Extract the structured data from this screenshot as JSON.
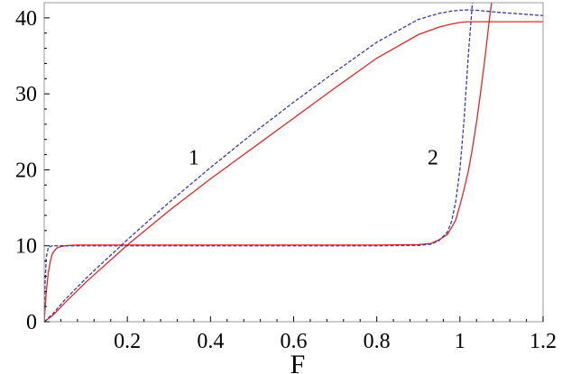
{
  "chart_data": {
    "type": "line",
    "title": "",
    "xlabel": "F",
    "ylabel": "",
    "xlim": [
      0,
      1.2
    ],
    "ylim": [
      0,
      42
    ],
    "x_tick_labels": [
      "0.2",
      "0.4",
      "0.6",
      "0.8",
      "1",
      "1.2"
    ],
    "x_ticks": [
      0.2,
      0.4,
      0.6,
      0.8,
      1.0,
      1.2
    ],
    "y_tick_labels": [
      "0",
      "10",
      "20",
      "30",
      "40"
    ],
    "y_ticks": [
      0,
      10,
      20,
      30,
      40
    ],
    "grid": false,
    "legend": "none",
    "annotations": [
      {
        "text": "1",
        "x": 0.36,
        "y": 20.7
      },
      {
        "text": "2",
        "x": 0.935,
        "y": 20.7
      }
    ],
    "series": [
      {
        "color": "#e8242a",
        "style": "solid",
        "x": [
          0,
          0.005,
          0.01,
          0.015,
          0.02,
          0.03,
          0.04,
          0.05,
          0.06,
          0.08,
          0.1,
          0.2,
          0.4,
          0.6,
          0.8,
          0.9,
          0.93,
          0.95,
          0.97,
          0.98,
          0.99,
          1.0,
          1.01,
          1.02,
          1.03,
          1.04,
          1.05,
          1.06,
          1.07,
          1.076
        ],
        "y": [
          0,
          4,
          6.5,
          8,
          9,
          9.7,
          9.9,
          10.0,
          10.05,
          10.1,
          10.1,
          10.1,
          10.1,
          10.1,
          10.1,
          10.15,
          10.3,
          10.8,
          11.5,
          12.4,
          13.4,
          15.3,
          17.4,
          19.8,
          22.8,
          26.3,
          30.3,
          34.6,
          39.4,
          42
        ]
      },
      {
        "color": "#e8242a",
        "style": "solid",
        "x": [
          0,
          0.02,
          0.05,
          0.1,
          0.2,
          0.3,
          0.4,
          0.5,
          0.6,
          0.7,
          0.8,
          0.9,
          0.95,
          0.98,
          1.0,
          1.02,
          1.05,
          1.1,
          1.2
        ],
        "y": [
          0,
          0.8,
          2.5,
          5.2,
          10.1,
          14.6,
          18.8,
          22.8,
          26.8,
          30.8,
          34.7,
          37.8,
          38.8,
          39.2,
          39.4,
          39.5,
          39.5,
          39.5,
          39.5
        ]
      },
      {
        "color": "#3a3aa8",
        "style": "dashed",
        "x": [
          0,
          0.002,
          0.005,
          0.01,
          0.02,
          0.1,
          0.2,
          0.4,
          0.6,
          0.8,
          0.9,
          0.93,
          0.95,
          0.97,
          0.98,
          0.99,
          1.0,
          1.01,
          1.02,
          1.025,
          1.03
        ],
        "y": [
          0,
          5,
          8.5,
          9.8,
          10.0,
          10.0,
          10.0,
          10.0,
          10.0,
          10.0,
          10.05,
          10.2,
          10.7,
          11.8,
          13.2,
          15.8,
          20.0,
          26.5,
          35.0,
          38.5,
          42
        ]
      },
      {
        "color": "#3a3aa8",
        "style": "dashed",
        "x": [
          0,
          0.02,
          0.05,
          0.1,
          0.2,
          0.3,
          0.4,
          0.5,
          0.6,
          0.7,
          0.8,
          0.9,
          0.95,
          0.98,
          1.0,
          1.02,
          1.04,
          1.06,
          1.08,
          1.1,
          1.15,
          1.2
        ],
        "y": [
          0,
          1.0,
          2.9,
          5.7,
          10.8,
          15.7,
          20.3,
          24.7,
          28.9,
          32.9,
          36.8,
          39.8,
          40.6,
          40.9,
          41.0,
          41.05,
          41.0,
          40.9,
          40.8,
          40.7,
          40.5,
          40.3
        ]
      }
    ]
  }
}
